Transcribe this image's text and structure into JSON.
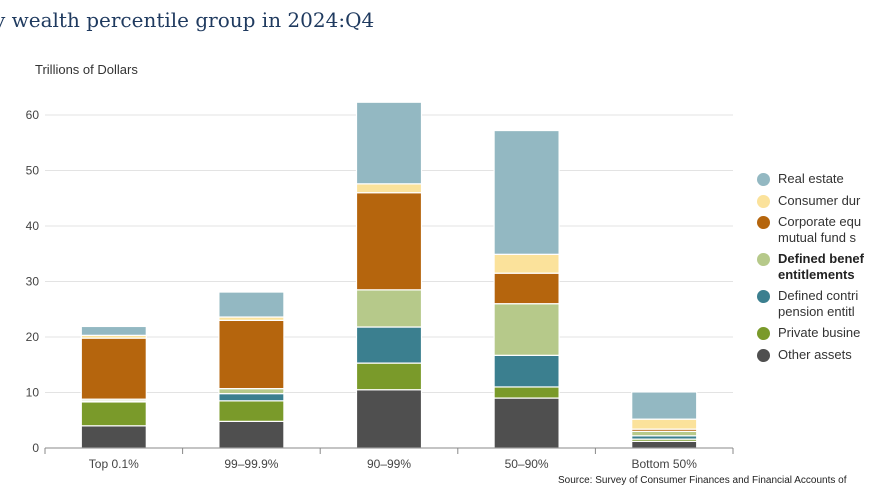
{
  "title": "y wealth percentile group in 2024:Q4",
  "source": "Source: Survey of Consumer Finances and Financial Accounts of",
  "chart_data": {
    "type": "bar",
    "stacked": true,
    "ylabel": "Trillions of Dollars",
    "ylim": [
      0,
      65
    ],
    "yticks": [
      0,
      10,
      20,
      30,
      40,
      50,
      60
    ],
    "grid": true,
    "legend_position": "right",
    "categories": [
      "Top 0.1%",
      "99–99.9%",
      "90–99%",
      "50–90%",
      "Bottom 50%"
    ],
    "series": [
      {
        "name": "Other assets",
        "color": "#4f4f4f",
        "values": [
          4.0,
          4.8,
          10.5,
          9.0,
          1.2
        ]
      },
      {
        "name": "Private busine",
        "color": "#7a9a2a",
        "values": [
          4.3,
          3.7,
          4.8,
          2.0,
          0.4
        ]
      },
      {
        "name": "Defined contri\npension entitl",
        "color": "#3b7f8f",
        "values": [
          0.2,
          1.3,
          6.5,
          5.7,
          0.6
        ]
      },
      {
        "name": "Defined benef\nentitlements",
        "color": "#b6c98a",
        "values": [
          0.3,
          0.9,
          6.7,
          9.3,
          0.8
        ]
      },
      {
        "name": "Corporate equ\nmutual fund s",
        "color": "#b5650d",
        "values": [
          11.0,
          12.3,
          17.5,
          5.5,
          0.4
        ]
      },
      {
        "name": "Consumer dur",
        "color": "#fbe29b",
        "values": [
          0.5,
          0.6,
          1.6,
          3.4,
          1.8
        ]
      },
      {
        "name": "Real estate",
        "color": "#93b8c2",
        "values": [
          1.6,
          4.5,
          14.7,
          22.3,
          4.9
        ]
      }
    ],
    "legend_order": [
      "Real estate",
      "Consumer dur",
      "Corporate equ\nmutual fund s",
      "Defined benef\nentitlements",
      "Defined contri\npension entitl",
      "Private busine",
      "Other assets"
    ],
    "legend_bold": [
      "Defined benef\nentitlements"
    ]
  }
}
